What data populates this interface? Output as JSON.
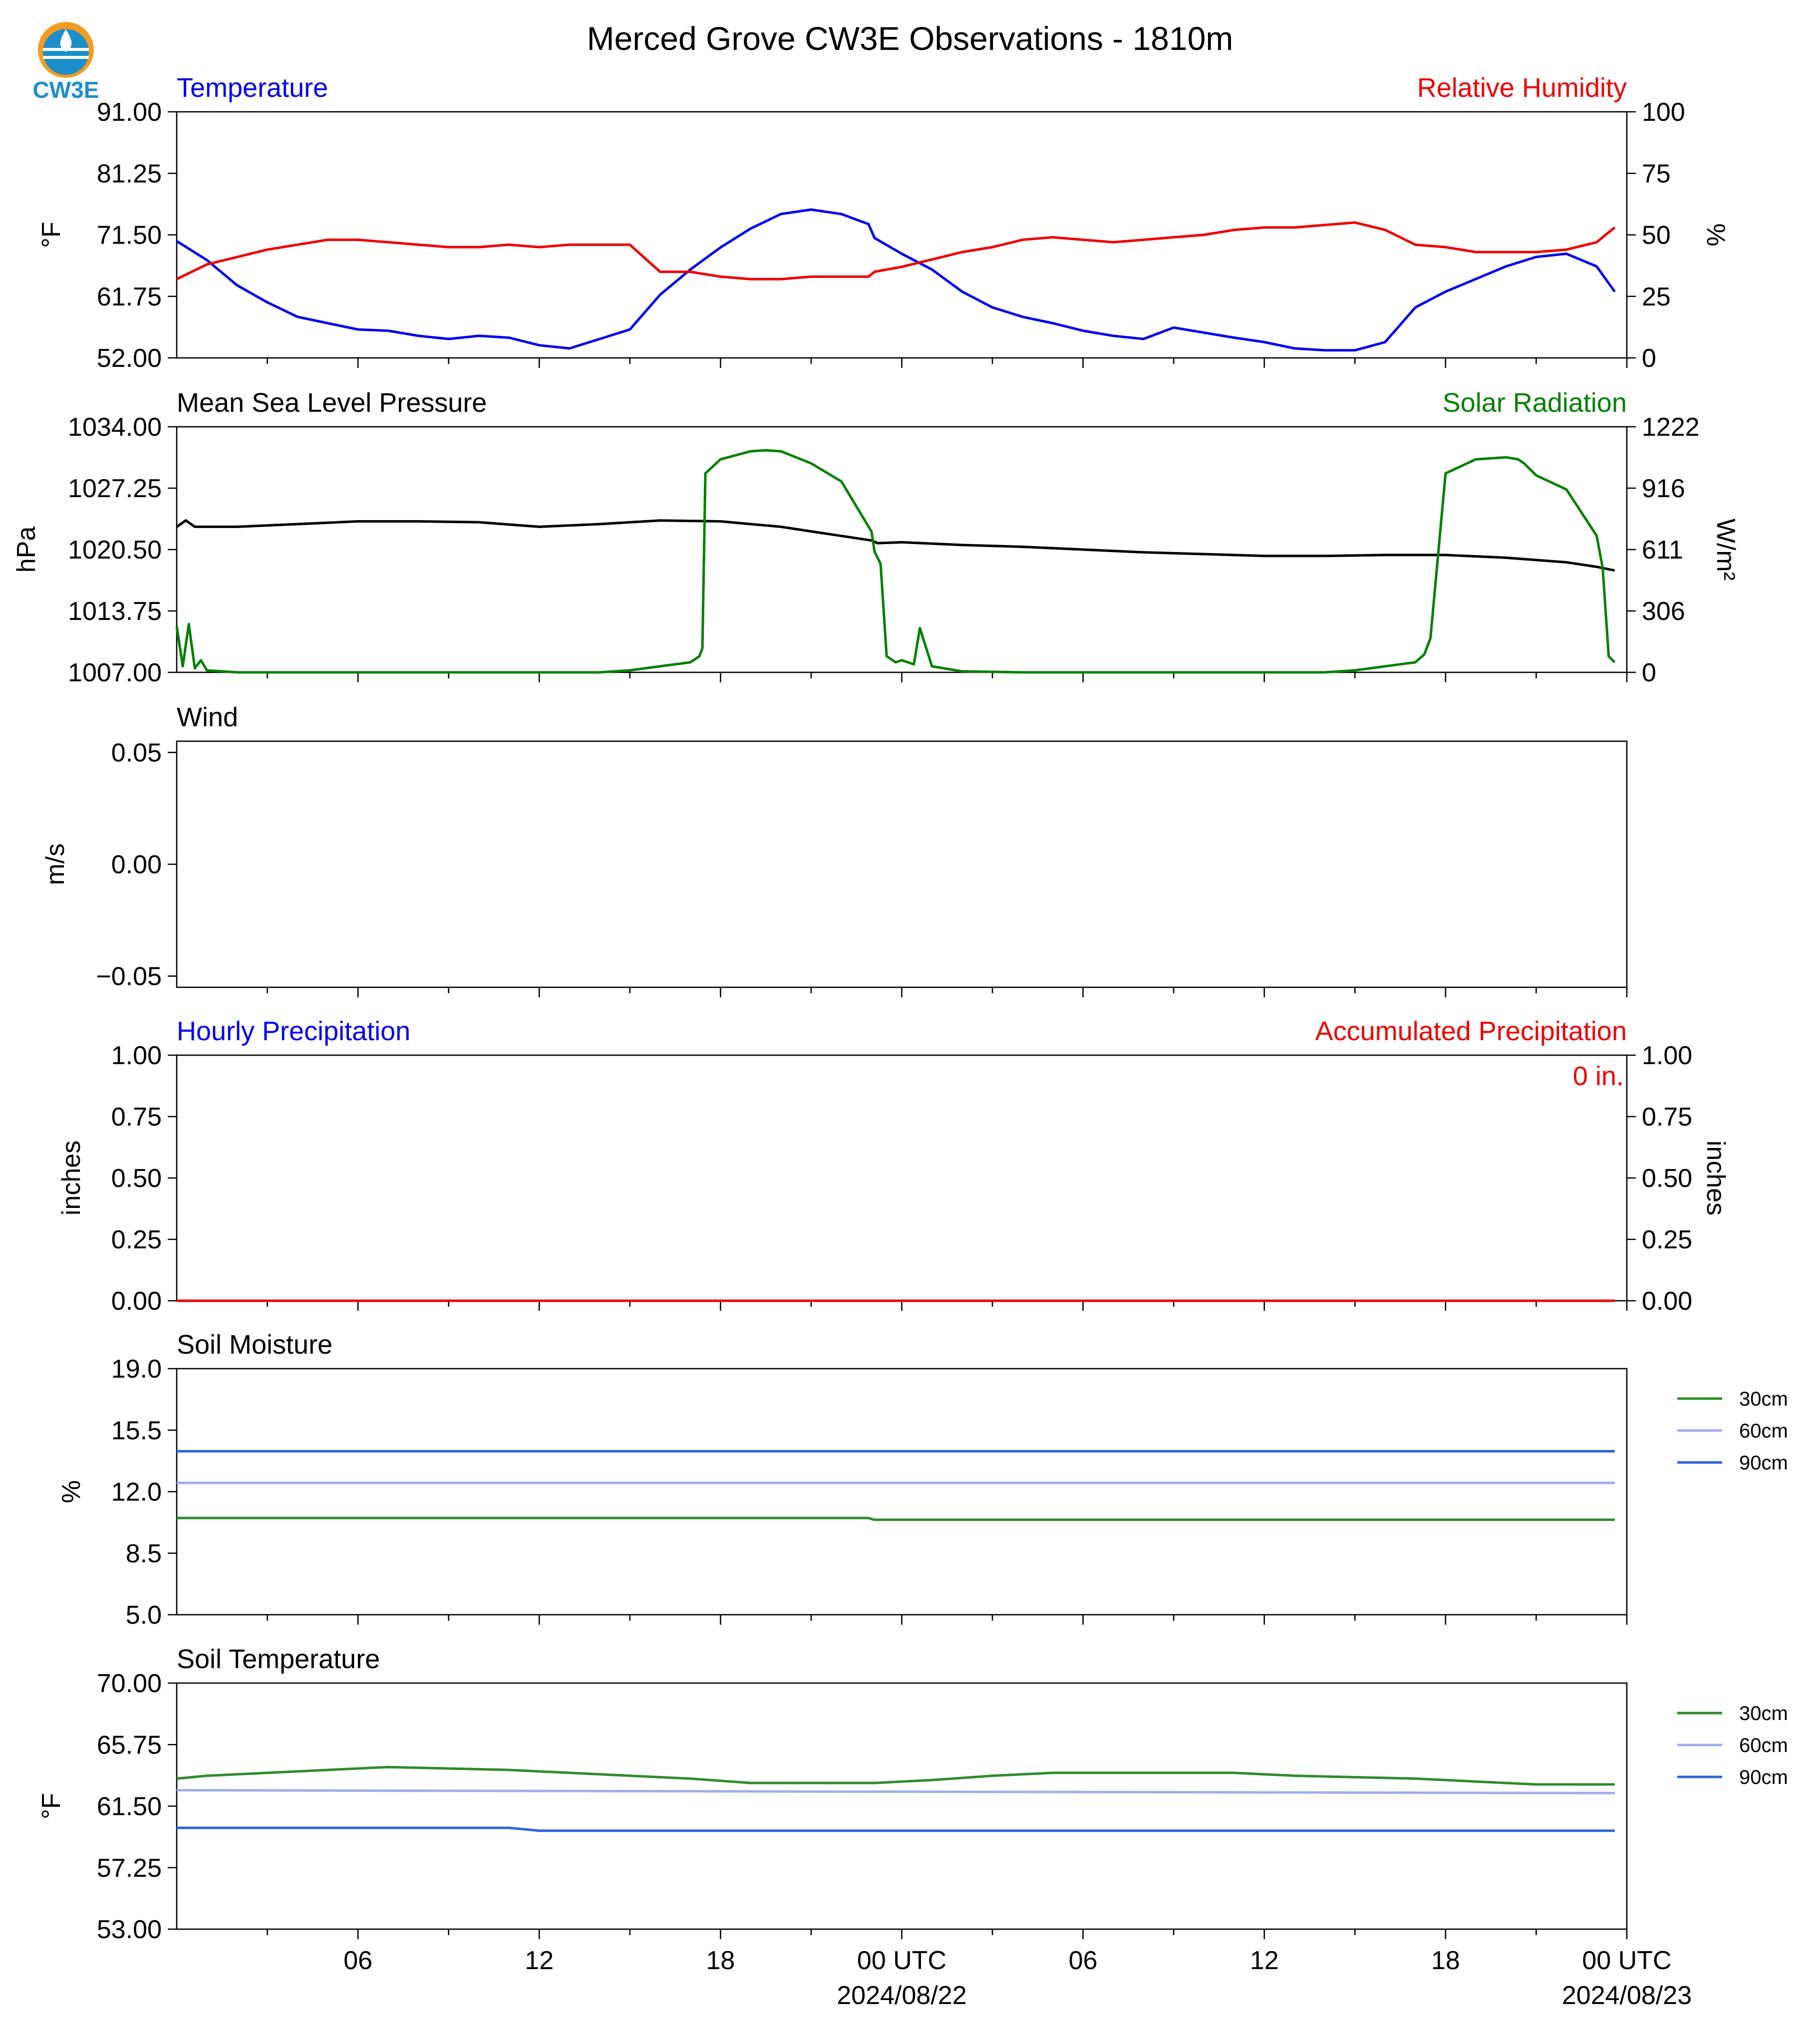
{
  "logo": {
    "text": "CW3E",
    "colors": {
      "orange": "#f39c1f",
      "blue": "#1b8fc9"
    }
  },
  "title": "Merced Grove CW3E Observations - 1810m",
  "x_axis": {
    "tick_labels": [
      "06",
      "12",
      "18",
      "00 UTC",
      "06",
      "12",
      "18",
      "00 UTC"
    ],
    "date_labels": [
      "2024/08/22",
      "2024/08/23"
    ],
    "range_hours": [
      0,
      48
    ]
  },
  "colors": {
    "temperature": "#0000ee",
    "humidity": "#ee0000",
    "pressure": "#000000",
    "solar": "#008000",
    "precip_hourly": "#0000ee",
    "precip_accum": "#ee0000",
    "soil_30": "#2e8b2e",
    "soil_60": "#a0aee8",
    "soil_90": "#2a64d8"
  },
  "chart_data": [
    {
      "type": "line",
      "id": "temp-rh",
      "title_left": "Temperature",
      "title_right": "Relative Humidity",
      "ylabel_left": "°F",
      "ylabel_right": "%",
      "ylim_left": [
        52.0,
        91.0
      ],
      "ylim_right": [
        0,
        100
      ],
      "yticks_left": [
        "91.00",
        "81.25",
        "71.50",
        "61.75",
        "52.00"
      ],
      "yticks_right": [
        "100",
        "75",
        "50",
        "25",
        "0"
      ],
      "series": [
        {
          "axis": "left",
          "color_key": "temperature",
          "x": [
            0,
            1,
            2,
            3,
            4,
            5,
            6,
            7,
            8,
            9,
            10,
            11,
            12,
            13,
            14,
            15,
            16,
            17,
            18,
            19,
            20,
            21,
            22,
            22.9,
            23.1,
            24,
            25,
            26,
            27,
            28,
            29,
            30,
            31,
            32,
            33,
            34,
            35,
            36,
            37,
            38,
            39,
            40,
            41,
            42,
            43,
            44,
            45,
            46,
            47,
            47.6
          ],
          "y": [
            70.5,
            67.5,
            63.5,
            60.8,
            58.5,
            57.5,
            56.5,
            56.3,
            55.5,
            55.0,
            55.5,
            55.2,
            54.0,
            53.5,
            55.0,
            56.5,
            62.0,
            66.0,
            69.5,
            72.5,
            74.8,
            75.5,
            74.8,
            73.2,
            71.0,
            68.5,
            66.0,
            62.5,
            60.0,
            58.5,
            57.5,
            56.3,
            55.5,
            55.0,
            56.8,
            56.0,
            55.2,
            54.5,
            53.5,
            53.2,
            53.2,
            54.5,
            60.0,
            62.5,
            64.5,
            66.5,
            68.0,
            68.5,
            66.5,
            62.5
          ]
        },
        {
          "axis": "right",
          "color_key": "humidity",
          "x": [
            0,
            1,
            2,
            3,
            4,
            5,
            6,
            7,
            8,
            9,
            10,
            11,
            12,
            13,
            14,
            15,
            16,
            17,
            18,
            19,
            20,
            21,
            22,
            22.9,
            23.1,
            24,
            25,
            26,
            27,
            28,
            29,
            30,
            31,
            32,
            33,
            34,
            35,
            36,
            37,
            38,
            39,
            40,
            41,
            42,
            43,
            44,
            45,
            46,
            47,
            47.6
          ],
          "y": [
            32,
            38,
            41,
            44,
            46,
            48,
            48,
            47,
            46,
            45,
            45,
            46,
            45,
            46,
            46,
            46,
            35,
            35,
            33,
            32,
            32,
            33,
            33,
            33,
            35,
            37,
            40,
            43,
            45,
            48,
            49,
            48,
            47,
            48,
            49,
            50,
            52,
            53,
            53,
            54,
            55,
            52,
            46,
            45,
            43,
            43,
            43,
            44,
            47,
            53
          ]
        }
      ]
    },
    {
      "type": "line",
      "id": "pressure-solar",
      "title_left": "Mean Sea Level Pressure",
      "title_right": "Solar Radiation",
      "ylabel_left": "hPa",
      "ylabel_right": "W/m²",
      "ylim_left": [
        1007.0,
        1034.0
      ],
      "ylim_right": [
        0,
        1222
      ],
      "yticks_left": [
        "1034.00",
        "1027.25",
        "1020.50",
        "1013.75",
        "1007.00"
      ],
      "yticks_right": [
        "1222",
        "916",
        "611",
        "306",
        "0"
      ],
      "series": [
        {
          "axis": "left",
          "color_key": "pressure",
          "x": [
            0,
            0.3,
            0.6,
            2,
            4,
            6,
            8,
            10,
            12,
            14,
            16,
            18,
            19,
            20,
            21,
            22,
            23,
            23.2,
            24,
            26,
            28,
            30,
            32,
            34,
            36,
            38,
            40,
            42,
            44,
            46,
            47,
            47.6
          ],
          "y": [
            1023.0,
            1023.7,
            1023.0,
            1023.0,
            1023.3,
            1023.6,
            1023.6,
            1023.5,
            1023.0,
            1023.3,
            1023.7,
            1023.6,
            1023.3,
            1023.0,
            1022.5,
            1022.0,
            1021.5,
            1021.2,
            1021.3,
            1021.0,
            1020.8,
            1020.5,
            1020.2,
            1020.0,
            1019.8,
            1019.8,
            1019.9,
            1019.9,
            1019.6,
            1019.1,
            1018.6,
            1018.2
          ]
        },
        {
          "axis": "right",
          "color_key": "solar",
          "x": [
            0,
            0.2,
            0.4,
            0.6,
            0.8,
            1.0,
            1.5,
            2,
            4,
            6,
            8,
            10,
            12,
            13,
            14,
            15,
            16,
            16.5,
            17,
            17.3,
            17.4,
            17.5,
            18,
            19,
            19.5,
            20,
            21,
            22,
            23,
            23.1,
            23.3,
            23.5,
            23.8,
            24,
            24.4,
            24.6,
            25,
            26,
            28,
            30,
            32,
            34,
            36,
            37,
            38,
            39,
            40,
            41,
            41.3,
            41.5,
            42,
            43,
            44,
            44.4,
            44.6,
            45,
            46,
            47,
            47.2,
            47.4,
            47.6
          ],
          "y": [
            230,
            30,
            240,
            20,
            60,
            10,
            5,
            0,
            0,
            0,
            0,
            0,
            0,
            0,
            0,
            10,
            30,
            40,
            50,
            80,
            120,
            990,
            1060,
            1100,
            1105,
            1100,
            1040,
            950,
            700,
            600,
            540,
            80,
            50,
            60,
            40,
            220,
            30,
            5,
            0,
            0,
            0,
            0,
            0,
            0,
            0,
            10,
            30,
            50,
            90,
            170,
            990,
            1060,
            1070,
            1060,
            1040,
            980,
            910,
            680,
            520,
            80,
            50
          ]
        }
      ]
    },
    {
      "type": "line",
      "id": "wind",
      "title_left": "Wind",
      "ylabel_left": "m/s",
      "ylim_left": [
        -0.055,
        0.055
      ],
      "yticks_left": [
        "0.05",
        "0.00",
        "−0.05"
      ],
      "series": []
    },
    {
      "type": "line",
      "id": "precip",
      "title_left": "Hourly Precipitation",
      "title_right": "Accumulated Precipitation",
      "annotation": "0 in.",
      "ylabel_left": "inches",
      "ylabel_right": "inches",
      "ylim_left": [
        0,
        1
      ],
      "ylim_right": [
        0,
        1
      ],
      "yticks_left": [
        "1.00",
        "0.75",
        "0.50",
        "0.25",
        "0.00"
      ],
      "yticks_right": [
        "1.00",
        "0.75",
        "0.50",
        "0.25",
        "0.00"
      ],
      "series": [
        {
          "axis": "left",
          "color_key": "precip_hourly",
          "x": [
            0,
            47.6
          ],
          "y": [
            0,
            0
          ]
        },
        {
          "axis": "right",
          "color_key": "precip_accum",
          "x": [
            0,
            47.6
          ],
          "y": [
            0,
            0
          ]
        }
      ]
    },
    {
      "type": "line",
      "id": "soil-moisture",
      "title_left": "Soil Moisture",
      "ylabel_left": "%",
      "ylim_left": [
        5.0,
        19.0
      ],
      "yticks_left": [
        "19.0",
        "15.5",
        "12.0",
        "8.5",
        "5.0"
      ],
      "legend": [
        "30cm",
        "60cm",
        "90cm"
      ],
      "series": [
        {
          "name": "30cm",
          "color_key": "soil_30",
          "x": [
            0,
            22.9,
            23.1,
            47.6
          ],
          "y": [
            10.5,
            10.5,
            10.4,
            10.4
          ]
        },
        {
          "name": "60cm",
          "color_key": "soil_60",
          "x": [
            0,
            22.9,
            23.1,
            47.6
          ],
          "y": [
            12.5,
            12.5,
            12.5,
            12.5
          ]
        },
        {
          "name": "90cm",
          "color_key": "soil_90",
          "x": [
            0,
            22.9,
            23.1,
            47.6
          ],
          "y": [
            14.3,
            14.3,
            14.3,
            14.3
          ]
        }
      ]
    },
    {
      "type": "line",
      "id": "soil-temperature",
      "title_left": "Soil Temperature",
      "ylabel_left": "°F",
      "ylim_left": [
        53.0,
        70.0
      ],
      "yticks_left": [
        "70.00",
        "65.75",
        "61.50",
        "57.25",
        "53.00"
      ],
      "legend": [
        "30cm",
        "60cm",
        "90cm"
      ],
      "series": [
        {
          "name": "30cm",
          "color_key": "soil_30",
          "x": [
            0,
            1,
            3,
            5,
            7,
            11,
            13,
            15,
            17,
            19,
            22.9,
            23.1,
            25,
            27,
            29,
            35,
            37,
            41,
            43,
            45,
            47.6
          ],
          "y": [
            63.4,
            63.6,
            63.8,
            64.0,
            64.2,
            64.0,
            63.8,
            63.6,
            63.4,
            63.1,
            63.1,
            63.1,
            63.3,
            63.6,
            63.8,
            63.8,
            63.6,
            63.4,
            63.2,
            63.0,
            63.0
          ]
        },
        {
          "name": "60cm",
          "color_key": "soil_60",
          "x": [
            0,
            22.9,
            23.1,
            47.6
          ],
          "y": [
            62.6,
            62.5,
            62.5,
            62.4
          ]
        },
        {
          "name": "90cm",
          "color_key": "soil_90",
          "x": [
            0,
            11,
            12,
            22.9,
            23.1,
            47.6
          ],
          "y": [
            60.0,
            60.0,
            59.8,
            59.8,
            59.8,
            59.8
          ]
        }
      ]
    }
  ]
}
